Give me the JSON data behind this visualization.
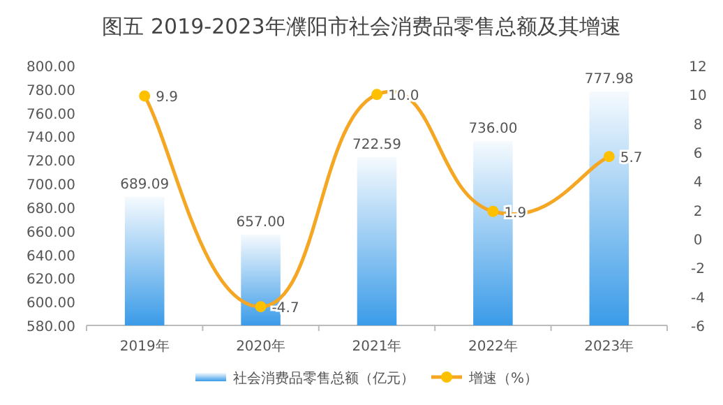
{
  "chart_data": {
    "type": "bar",
    "title": "图五  2019-2023年濮阳市社会消费品零售总额及其增速",
    "categories": [
      "2019年",
      "2020年",
      "2021年",
      "2022年",
      "2023年"
    ],
    "series": [
      {
        "name": "社会消费品零售总额（亿元）",
        "color": "#3a9be8",
        "values": [
          689.09,
          657.0,
          722.59,
          736.0,
          777.98
        ],
        "value_labels": [
          "689.09",
          "657.00",
          "722.59",
          "736.00",
          "777.98"
        ]
      },
      {
        "name": "增速（%）",
        "type": "line",
        "axis": "y2",
        "color": "#f5a623",
        "marker": "circle",
        "values": [
          9.9,
          -4.7,
          10.0,
          1.9,
          5.7
        ],
        "value_labels": [
          "9.9",
          "-4.7",
          "10.0",
          "1.9",
          "5.7"
        ]
      }
    ],
    "ylim": [
      580,
      800
    ],
    "yticks": [
      {
        "value": 580,
        "label": "580.00"
      },
      {
        "value": 600,
        "label": "600.00"
      },
      {
        "value": 620,
        "label": "620.00"
      },
      {
        "value": 640,
        "label": "640.00"
      },
      {
        "value": 660,
        "label": "660.00"
      },
      {
        "value": 680,
        "label": "680.00"
      },
      {
        "value": 700,
        "label": "700.00"
      },
      {
        "value": 720,
        "label": "720.00"
      },
      {
        "value": 740,
        "label": "740.00"
      },
      {
        "value": 760,
        "label": "760.00"
      },
      {
        "value": 780,
        "label": "780.00"
      },
      {
        "value": 800,
        "label": "800.00"
      }
    ],
    "y2lim": [
      -6,
      12
    ],
    "y2ticks": [
      -6,
      -4,
      -2,
      0,
      2,
      4,
      6,
      8,
      10,
      12
    ],
    "legend": "bottom"
  }
}
